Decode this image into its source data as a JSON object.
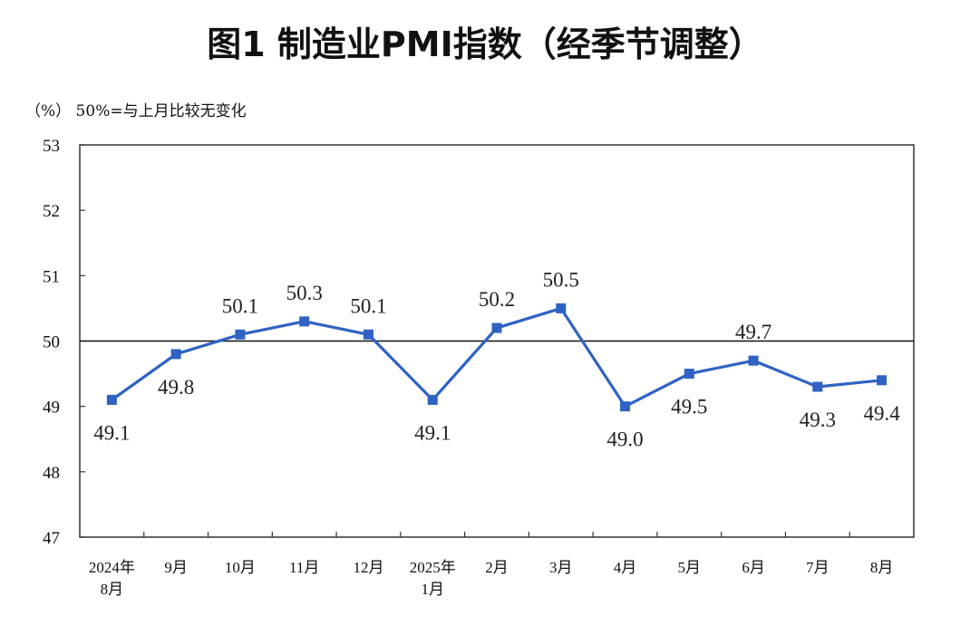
{
  "title": "图1  制造业PMI指数（经季节调整）",
  "note": "（%）  50%=与上月比较无变化",
  "chart_data": {
    "type": "line",
    "categories": [
      [
        "2024年",
        "8月"
      ],
      [
        "9月"
      ],
      [
        "10月"
      ],
      [
        "11月"
      ],
      [
        "12月"
      ],
      [
        "2025年",
        "1月"
      ],
      [
        "2月"
      ],
      [
        "3月"
      ],
      [
        "4月"
      ],
      [
        "5月"
      ],
      [
        "6月"
      ],
      [
        "7月"
      ],
      [
        "8月"
      ]
    ],
    "values": [
      49.1,
      49.8,
      50.1,
      50.3,
      50.1,
      49.1,
      50.2,
      50.5,
      49.0,
      49.5,
      49.7,
      49.3,
      49.4
    ],
    "value_labels": [
      "49.1",
      "49.8",
      "50.1",
      "50.3",
      "50.1",
      "49.1",
      "50.2",
      "50.5",
      "49.0",
      "49.5",
      "49.7",
      "49.3",
      "49.4"
    ],
    "label_position": [
      "below",
      "below",
      "above",
      "above",
      "above",
      "below",
      "above",
      "above",
      "below",
      "below",
      "above",
      "below",
      "below"
    ],
    "ylim": [
      47,
      53
    ],
    "yticks": [
      "47",
      "48",
      "49",
      "50",
      "51",
      "52",
      "53"
    ],
    "reference_line": 50,
    "line_color": "#2f62c3",
    "marker": "square"
  }
}
